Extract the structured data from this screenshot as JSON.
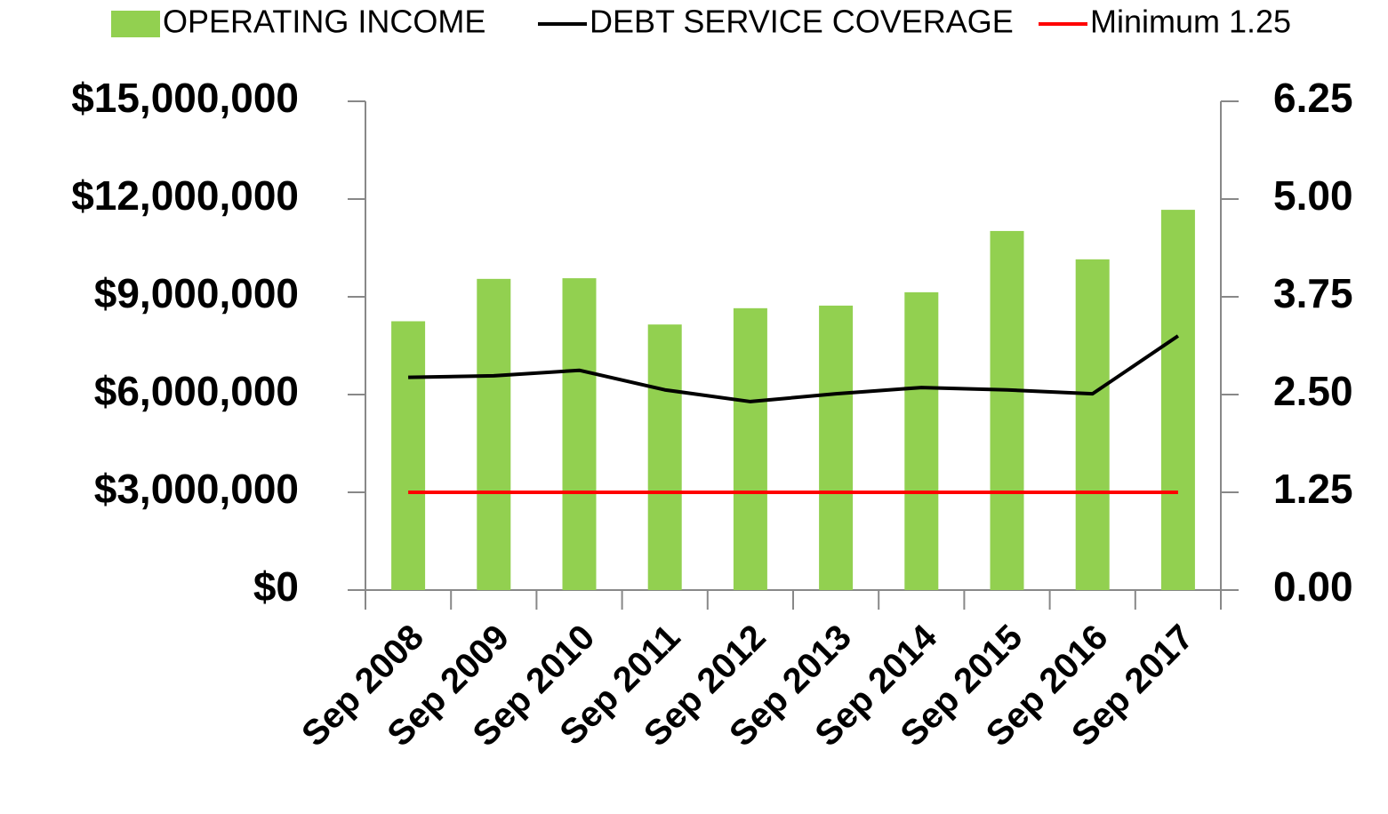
{
  "chart_data": {
    "type": "bar",
    "categories": [
      "Sep 2008",
      "Sep 2009",
      "Sep 2010",
      "Sep 2011",
      "Sep 2012",
      "Sep 2013",
      "Sep 2014",
      "Sep 2015",
      "Sep 2016",
      "Sep 2017"
    ],
    "series": [
      {
        "name": "OPERATING INCOME",
        "color": "#92d050",
        "type": "bar",
        "values": [
          8250000,
          9550000,
          9570000,
          8150000,
          8650000,
          8730000,
          9140000,
          11020000,
          10150000,
          11670000
        ]
      },
      {
        "name": "DEBT SERVICE COVERAGE",
        "color": "#000000",
        "type": "line",
        "axis": "y2",
        "values": [
          2.72,
          2.74,
          2.81,
          2.56,
          2.41,
          2.51,
          2.59,
          2.56,
          2.51,
          3.25
        ]
      },
      {
        "name": "Minimum 1.25",
        "color": "#ff0000",
        "type": "line",
        "axis": "y2",
        "values": [
          1.25,
          1.25,
          1.25,
          1.25,
          1.25,
          1.25,
          1.25,
          1.25,
          1.25,
          1.25
        ]
      }
    ],
    "ylim": [
      0,
      15000000
    ],
    "yticks": [
      {
        "value": 0,
        "label": "$0"
      },
      {
        "value": 3000000,
        "label": "$3,000,000"
      },
      {
        "value": 6000000,
        "label": "$6,000,000"
      },
      {
        "value": 9000000,
        "label": "$9,000,000"
      },
      {
        "value": 12000000,
        "label": "$12,000,000"
      },
      {
        "value": 15000000,
        "label": "$15,000,000"
      }
    ],
    "y2lim": [
      0,
      6.25
    ],
    "y2ticks": [
      {
        "value": 0,
        "label": "0.00"
      },
      1.25,
      {
        "value": 2.5,
        "label": "2.50"
      },
      3.75,
      {
        "value": 5,
        "label": "5.00"
      },
      6.25
    ],
    "grid": false,
    "legend": "top"
  }
}
